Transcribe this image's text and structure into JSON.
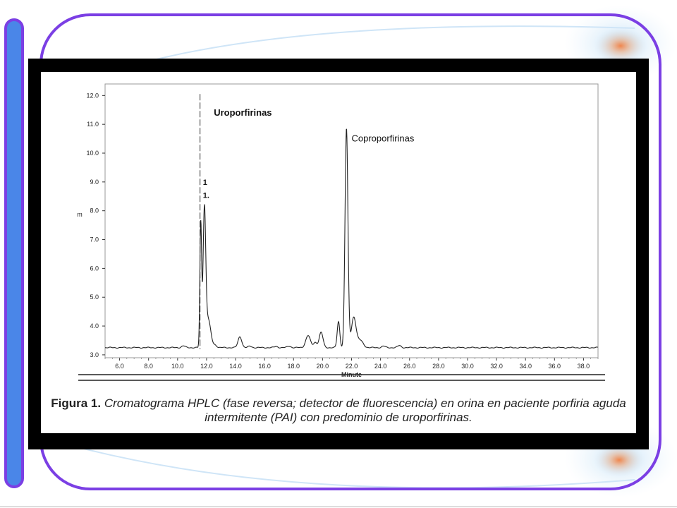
{
  "slide": {
    "colors": {
      "frame": "#000000",
      "accent_border": "#7b3fe4",
      "left_bar": "#4a86e8",
      "orange_glow": "#f47b3a"
    }
  },
  "figure": {
    "caption_label": "Figura 1.",
    "caption_line1": "Cromatograma HPLC (fase reversa; detector de fluorescencia) en orina en paciente porfiria aguda",
    "caption_line2": "intermitente (PAI) con predominio de uroporfirinas."
  },
  "chart_data": {
    "type": "line",
    "xlabel": "Minute",
    "ylabel": "m",
    "xlim": [
      5.0,
      39.0
    ],
    "ylim": [
      3.0,
      12.0
    ],
    "x_ticks": [
      "6.0",
      "8.0",
      "10.0",
      "12.0",
      "14.0",
      "16.0",
      "18.0",
      "20.0",
      "22.0",
      "24.0",
      "26.0",
      "28.0",
      "30.0",
      "32.0",
      "34.0",
      "36.0",
      "38.0"
    ],
    "y_ticks": [
      "3.0",
      "4.0",
      "5.0",
      "6.0",
      "7.0",
      "8.0",
      "9.0",
      "10.0",
      "11.0",
      "12.0"
    ],
    "annotations": [
      {
        "text": "Uroporfirinas",
        "x": 12.5,
        "y": 11.3,
        "bold": true
      },
      {
        "text": "Coproporfirinas",
        "x": 22.0,
        "y": 10.4,
        "bold": false
      },
      {
        "text": "1",
        "x": 11.75,
        "y": 8.9,
        "bold": true
      },
      {
        "text": "1.",
        "x": 11.75,
        "y": 8.45,
        "bold": true
      }
    ],
    "series": [
      {
        "baseline": 3.25,
        "peaks": [
          {
            "x": 10.4,
            "h": 0.06,
            "w": 0.12
          },
          {
            "x": 11.6,
            "h": 4.3,
            "w": 0.06
          },
          {
            "x": 11.85,
            "h": 4.6,
            "w": 0.09
          },
          {
            "x": 12.1,
            "h": 1.0,
            "w": 0.18
          },
          {
            "x": 12.6,
            "h": 0.08,
            "w": 0.12
          },
          {
            "x": 14.3,
            "h": 0.38,
            "w": 0.13
          },
          {
            "x": 15.0,
            "h": 0.05,
            "w": 0.12
          },
          {
            "x": 16.8,
            "h": 0.04,
            "w": 0.12
          },
          {
            "x": 17.7,
            "h": 0.05,
            "w": 0.12
          },
          {
            "x": 19.0,
            "h": 0.42,
            "w": 0.16
          },
          {
            "x": 19.5,
            "h": 0.18,
            "w": 0.12
          },
          {
            "x": 19.9,
            "h": 0.53,
            "w": 0.13
          },
          {
            "x": 21.1,
            "h": 0.9,
            "w": 0.09
          },
          {
            "x": 21.65,
            "h": 7.6,
            "w": 0.1
          },
          {
            "x": 22.15,
            "h": 1.05,
            "w": 0.16
          },
          {
            "x": 22.6,
            "h": 0.25,
            "w": 0.2
          },
          {
            "x": 24.2,
            "h": 0.05,
            "w": 0.12
          },
          {
            "x": 25.3,
            "h": 0.07,
            "w": 0.12
          }
        ]
      }
    ]
  }
}
